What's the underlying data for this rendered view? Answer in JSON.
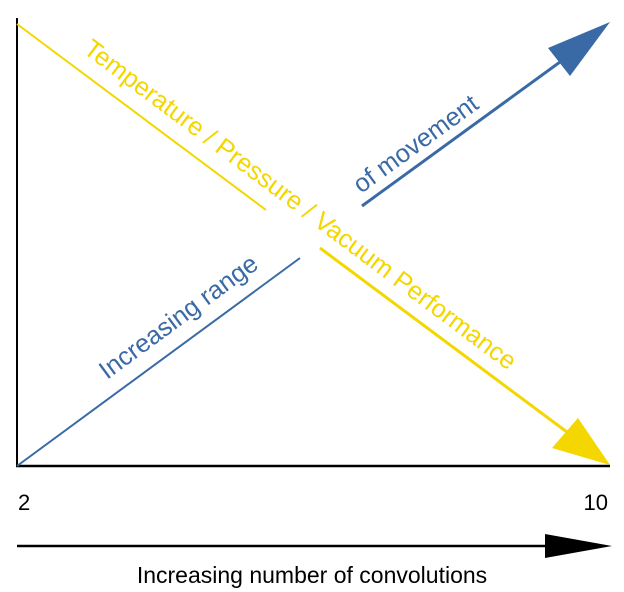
{
  "labels": {
    "temperature": "Temperature / Pressure / Vacuum Performance",
    "movement_a": "Increasing range",
    "movement_b": "of movement",
    "tick_min": "2",
    "tick_max": "10",
    "x_axis": "Increasing number of convolutions"
  },
  "colors": {
    "yellow": "#f4d600",
    "blue": "#3a6aa6",
    "black": "#000000"
  }
}
